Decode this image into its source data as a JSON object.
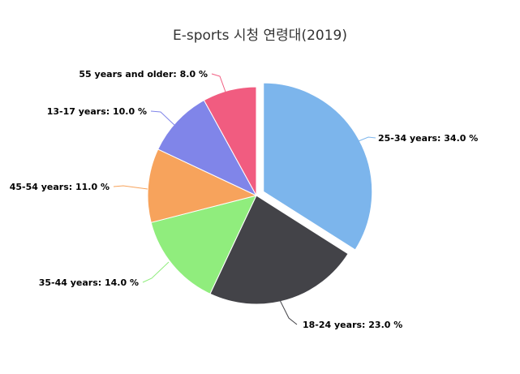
{
  "chart_data": {
    "type": "pie",
    "title": "E-sports 시청 연령대(2019)",
    "slices": [
      {
        "name": "25-34 years",
        "value": 34.0,
        "label": "25-34 years: 34.0 %",
        "color": "#7cb5ec",
        "sliced": true
      },
      {
        "name": "18-24 years",
        "value": 23.0,
        "label": "18-24 years: 23.0 %",
        "color": "#434348",
        "sliced": false
      },
      {
        "name": "35-44 years",
        "value": 14.0,
        "label": "35-44 years: 14.0 %",
        "color": "#90ed7d",
        "sliced": false
      },
      {
        "name": "45-54 years",
        "value": 11.0,
        "label": "45-54 years: 11.0 %",
        "color": "#f7a35c",
        "sliced": false
      },
      {
        "name": "13-17 years",
        "value": 10.0,
        "label": "13-17 years: 10.0 %",
        "color": "#8085e9",
        "sliced": false
      },
      {
        "name": "55 years and older",
        "value": 8.0,
        "label": "55 years and older: 8.0 %",
        "color": "#f15c80",
        "sliced": false
      }
    ]
  }
}
